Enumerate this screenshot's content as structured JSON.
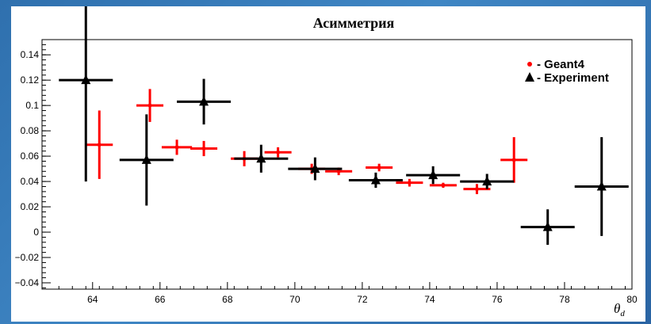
{
  "chart_data": {
    "type": "scatter",
    "title": "Асимметрия",
    "xlabel": "θ",
    "xlabel_subscript": "d",
    "ylabel": "",
    "xlim": [
      62.5,
      80
    ],
    "ylim": [
      -0.045,
      0.152
    ],
    "x_ticks": [
      64,
      66,
      68,
      70,
      72,
      74,
      76,
      78,
      80
    ],
    "y_ticks": [
      -0.04,
      -0.02,
      0,
      0.02,
      0.04,
      0.06,
      0.08,
      0.1,
      0.12,
      0.14
    ],
    "y_tick_labels": [
      "−0.04",
      "−0.02",
      "0",
      "0.02",
      "0.04",
      "0.06",
      "0.08",
      "0.1",
      "0.12",
      "0.14"
    ],
    "grid": false,
    "legend_position": "top-right",
    "series": [
      {
        "name": "- Geant4",
        "color": "#ff0000",
        "marker": "dot",
        "points": [
          {
            "x": 64.2,
            "xerr": 0.4,
            "y": 0.069,
            "yerr": 0.027
          },
          {
            "x": 65.7,
            "xerr": 0.4,
            "y": 0.1,
            "yerr": 0.013
          },
          {
            "x": 66.5,
            "xerr": 0.45,
            "y": 0.067,
            "yerr": 0.006
          },
          {
            "x": 67.3,
            "xerr": 0.4,
            "y": 0.066,
            "yerr": 0.006
          },
          {
            "x": 68.5,
            "xerr": 0.4,
            "y": 0.058,
            "yerr": 0.006
          },
          {
            "x": 69.5,
            "xerr": 0.4,
            "y": 0.063,
            "yerr": 0.004
          },
          {
            "x": 70.5,
            "xerr": 0.4,
            "y": 0.05,
            "yerr": 0.004
          },
          {
            "x": 71.3,
            "xerr": 0.4,
            "y": 0.048,
            "yerr": 0.003
          },
          {
            "x": 72.5,
            "xerr": 0.4,
            "y": 0.051,
            "yerr": 0.003
          },
          {
            "x": 73.4,
            "xerr": 0.4,
            "y": 0.039,
            "yerr": 0.003
          },
          {
            "x": 74.4,
            "xerr": 0.4,
            "y": 0.037,
            "yerr": 0.002
          },
          {
            "x": 75.4,
            "xerr": 0.4,
            "y": 0.034,
            "yerr": 0.004
          },
          {
            "x": 76.5,
            "xerr": 0.4,
            "y": 0.057,
            "yerr": 0.018
          }
        ]
      },
      {
        "name": "- Experiment",
        "color": "#000000",
        "marker": "triangle",
        "points": [
          {
            "x": 63.8,
            "xerr": 0.8,
            "y": 0.12,
            "yerr": 0.08
          },
          {
            "x": 65.6,
            "xerr": 0.8,
            "y": 0.057,
            "yerr": 0.036
          },
          {
            "x": 67.3,
            "xerr": 0.8,
            "y": 0.103,
            "yerr": 0.018
          },
          {
            "x": 69.0,
            "xerr": 0.8,
            "y": 0.058,
            "yerr": 0.011
          },
          {
            "x": 70.6,
            "xerr": 0.8,
            "y": 0.05,
            "yerr": 0.009
          },
          {
            "x": 72.4,
            "xerr": 0.8,
            "y": 0.041,
            "yerr": 0.006
          },
          {
            "x": 74.1,
            "xerr": 0.8,
            "y": 0.045,
            "yerr": 0.007
          },
          {
            "x": 75.7,
            "xerr": 0.8,
            "y": 0.04,
            "yerr": 0.006
          },
          {
            "x": 77.5,
            "xerr": 0.8,
            "y": 0.004,
            "yerr": 0.014
          },
          {
            "x": 79.1,
            "xerr": 0.8,
            "y": 0.036,
            "yerr": 0.039
          }
        ]
      }
    ]
  }
}
